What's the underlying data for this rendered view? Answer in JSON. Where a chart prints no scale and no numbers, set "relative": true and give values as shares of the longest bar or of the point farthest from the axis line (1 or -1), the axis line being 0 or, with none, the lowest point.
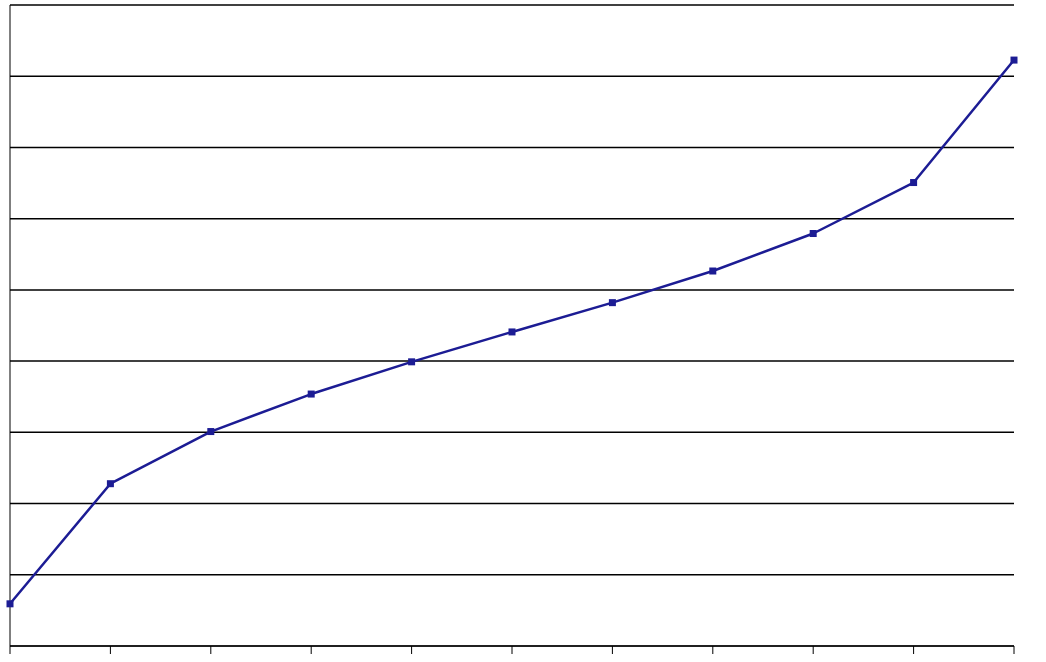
{
  "chart_data": {
    "type": "line",
    "relative": true,
    "categories": [
      null,
      null,
      null,
      null,
      null,
      null,
      null,
      null,
      null,
      null,
      null
    ],
    "series": [
      {
        "color": "#1c1c94",
        "values": [
          0.072,
          0.277,
          0.366,
          0.43,
          0.485,
          0.536,
          0.586,
          0.64,
          0.704,
          0.791,
          1
        ]
      }
    ],
    "grid": "y",
    "marker": "square",
    "line_style": "solid"
  }
}
